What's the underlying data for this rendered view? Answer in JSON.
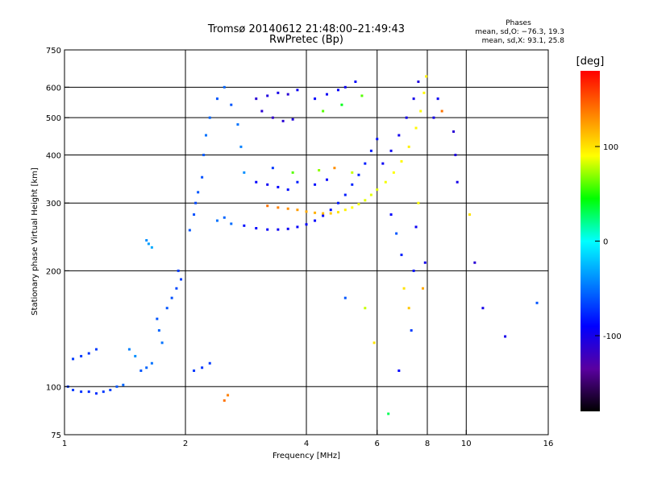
{
  "chart_data": {
    "type": "scatter",
    "title": "Tromsø 20140612 21:48:00–21:49:43",
    "subtitle": "RwPretec (Bp)",
    "xlabel": "Frequency [MHz]",
    "ylabel": "Stationary phase Virtual Height [km]",
    "x_scale": "log",
    "y_scale": "log",
    "xlim": [
      1,
      16
    ],
    "ylim": [
      75,
      750
    ],
    "x_ticks": [
      1,
      2,
      4,
      6,
      8,
      10,
      16
    ],
    "x_tick_labels": [
      "1",
      "2",
      "4",
      "6",
      "8",
      "10",
      "16"
    ],
    "y_ticks": [
      75,
      100,
      200,
      300,
      400,
      500,
      600,
      750
    ],
    "y_tick_labels": [
      "75",
      "100",
      "200",
      "300",
      "400",
      "500",
      "600",
      "750"
    ],
    "grid": true,
    "phase_box": {
      "title": "Phases",
      "line_o": "mean, sd,O: −76.3, 19.3",
      "line_x": "mean, sd,X:  93.1, 25.8"
    },
    "colorbar": {
      "label": "[deg]",
      "range": [
        -180,
        180
      ],
      "ticks": [
        100,
        0,
        -100
      ],
      "tick_labels": [
        "100",
        "0",
        "-100"
      ],
      "colors": [
        "#000000",
        "#5a00a0",
        "#0000ff",
        "#0080ff",
        "#00ffff",
        "#00ff00",
        "#ffff00",
        "#ff8000",
        "#ff0000"
      ]
    },
    "series": [
      {
        "values": [
          {
            "x": 1.02,
            "y": 100,
            "p": -70
          },
          {
            "x": 1.05,
            "y": 98,
            "p": -70
          },
          {
            "x": 1.1,
            "y": 97,
            "p": -72
          },
          {
            "x": 1.15,
            "y": 97,
            "p": -75
          },
          {
            "x": 1.2,
            "y": 96,
            "p": -75
          },
          {
            "x": 1.25,
            "y": 97,
            "p": -70
          },
          {
            "x": 1.3,
            "y": 98,
            "p": -68
          },
          {
            "x": 1.35,
            "y": 100,
            "p": -60
          },
          {
            "x": 1.4,
            "y": 101,
            "p": -55
          },
          {
            "x": 1.05,
            "y": 118,
            "p": -70
          },
          {
            "x": 1.1,
            "y": 120,
            "p": -70
          },
          {
            "x": 1.15,
            "y": 122,
            "p": -72
          },
          {
            "x": 1.2,
            "y": 125,
            "p": -70
          },
          {
            "x": 1.45,
            "y": 125,
            "p": -45
          },
          {
            "x": 1.5,
            "y": 120,
            "p": -40
          },
          {
            "x": 1.55,
            "y": 110,
            "p": -60
          },
          {
            "x": 1.6,
            "y": 112,
            "p": -55
          },
          {
            "x": 1.65,
            "y": 115,
            "p": -50
          },
          {
            "x": 1.6,
            "y": 240,
            "p": -40
          },
          {
            "x": 1.62,
            "y": 235,
            "p": -35
          },
          {
            "x": 1.65,
            "y": 230,
            "p": -30
          },
          {
            "x": 1.7,
            "y": 150,
            "p": -60
          },
          {
            "x": 1.72,
            "y": 140,
            "p": -55
          },
          {
            "x": 1.75,
            "y": 130,
            "p": -50
          },
          {
            "x": 1.8,
            "y": 160,
            "p": -60
          },
          {
            "x": 1.85,
            "y": 170,
            "p": -62
          },
          {
            "x": 1.9,
            "y": 180,
            "p": -65
          },
          {
            "x": 1.92,
            "y": 200,
            "p": -70
          },
          {
            "x": 1.95,
            "y": 190,
            "p": -68
          },
          {
            "x": 2.1,
            "y": 110,
            "p": -70
          },
          {
            "x": 2.2,
            "y": 112,
            "p": -72
          },
          {
            "x": 2.3,
            "y": 115,
            "p": -70
          },
          {
            "x": 2.05,
            "y": 255,
            "p": -60
          },
          {
            "x": 2.1,
            "y": 280,
            "p": -62
          },
          {
            "x": 2.12,
            "y": 300,
            "p": -65
          },
          {
            "x": 2.15,
            "y": 320,
            "p": -60
          },
          {
            "x": 2.2,
            "y": 350,
            "p": -62
          },
          {
            "x": 2.22,
            "y": 400,
            "p": -58
          },
          {
            "x": 2.25,
            "y": 450,
            "p": -50
          },
          {
            "x": 2.3,
            "y": 500,
            "p": -55
          },
          {
            "x": 2.4,
            "y": 560,
            "p": -60
          },
          {
            "x": 2.5,
            "y": 600,
            "p": -55
          },
          {
            "x": 2.6,
            "y": 540,
            "p": -60
          },
          {
            "x": 2.7,
            "y": 480,
            "p": -50
          },
          {
            "x": 2.75,
            "y": 420,
            "p": -45
          },
          {
            "x": 2.8,
            "y": 360,
            "p": -40
          },
          {
            "x": 2.4,
            "y": 270,
            "p": -50
          },
          {
            "x": 2.5,
            "y": 275,
            "p": -55
          },
          {
            "x": 2.6,
            "y": 265,
            "p": -52
          },
          {
            "x": 2.8,
            "y": 262,
            "p": -85
          },
          {
            "x": 3.0,
            "y": 258,
            "p": -90
          },
          {
            "x": 3.2,
            "y": 256,
            "p": -92
          },
          {
            "x": 3.4,
            "y": 256,
            "p": -95
          },
          {
            "x": 3.6,
            "y": 257,
            "p": -95
          },
          {
            "x": 3.8,
            "y": 260,
            "p": -92
          },
          {
            "x": 4.0,
            "y": 264,
            "p": -90
          },
          {
            "x": 4.2,
            "y": 270,
            "p": -90
          },
          {
            "x": 4.4,
            "y": 278,
            "p": -88
          },
          {
            "x": 4.6,
            "y": 288,
            "p": -85
          },
          {
            "x": 4.8,
            "y": 300,
            "p": -82
          },
          {
            "x": 5.0,
            "y": 315,
            "p": -80
          },
          {
            "x": 5.2,
            "y": 335,
            "p": -78
          },
          {
            "x": 5.4,
            "y": 355,
            "p": -78
          },
          {
            "x": 5.6,
            "y": 380,
            "p": -80
          },
          {
            "x": 5.8,
            "y": 410,
            "p": -82
          },
          {
            "x": 6.0,
            "y": 440,
            "p": -85
          },
          {
            "x": 3.2,
            "y": 295,
            "p": 140
          },
          {
            "x": 3.4,
            "y": 292,
            "p": 135
          },
          {
            "x": 3.6,
            "y": 290,
            "p": 130
          },
          {
            "x": 3.8,
            "y": 288,
            "p": 125
          },
          {
            "x": 4.0,
            "y": 285,
            "p": 120
          },
          {
            "x": 4.2,
            "y": 283,
            "p": 118
          },
          {
            "x": 4.4,
            "y": 282,
            "p": 115
          },
          {
            "x": 4.6,
            "y": 282,
            "p": 110
          },
          {
            "x": 4.8,
            "y": 284,
            "p": 100
          },
          {
            "x": 5.0,
            "y": 288,
            "p": 95
          },
          {
            "x": 5.2,
            "y": 292,
            "p": 90
          },
          {
            "x": 5.4,
            "y": 298,
            "p": 88
          },
          {
            "x": 5.6,
            "y": 305,
            "p": 85
          },
          {
            "x": 5.8,
            "y": 315,
            "p": 85
          },
          {
            "x": 6.0,
            "y": 325,
            "p": 85
          },
          {
            "x": 6.3,
            "y": 340,
            "p": 88
          },
          {
            "x": 6.6,
            "y": 360,
            "p": 90
          },
          {
            "x": 6.9,
            "y": 385,
            "p": 92
          },
          {
            "x": 7.2,
            "y": 420,
            "p": 95
          },
          {
            "x": 7.5,
            "y": 470,
            "p": 92
          },
          {
            "x": 7.7,
            "y": 520,
            "p": 90
          },
          {
            "x": 7.85,
            "y": 580,
            "p": 92
          },
          {
            "x": 7.95,
            "y": 640,
            "p": 95
          },
          {
            "x": 6.2,
            "y": 380,
            "p": -95
          },
          {
            "x": 6.5,
            "y": 410,
            "p": -95
          },
          {
            "x": 6.8,
            "y": 450,
            "p": -98
          },
          {
            "x": 7.1,
            "y": 500,
            "p": -100
          },
          {
            "x": 7.4,
            "y": 560,
            "p": -100
          },
          {
            "x": 7.6,
            "y": 620,
            "p": -105
          },
          {
            "x": 3.0,
            "y": 340,
            "p": -90
          },
          {
            "x": 3.2,
            "y": 335,
            "p": -95
          },
          {
            "x": 3.4,
            "y": 330,
            "p": -90
          },
          {
            "x": 3.6,
            "y": 325,
            "p": -85
          },
          {
            "x": 3.8,
            "y": 340,
            "p": -80
          },
          {
            "x": 4.2,
            "y": 335,
            "p": -85
          },
          {
            "x": 4.5,
            "y": 345,
            "p": -90
          },
          {
            "x": 3.3,
            "y": 370,
            "p": -70
          },
          {
            "x": 3.7,
            "y": 360,
            "p": 60
          },
          {
            "x": 4.3,
            "y": 365,
            "p": 70
          },
          {
            "x": 4.7,
            "y": 370,
            "p": 130
          },
          {
            "x": 5.2,
            "y": 360,
            "p": 80
          },
          {
            "x": 3.0,
            "y": 560,
            "p": -110
          },
          {
            "x": 3.2,
            "y": 570,
            "p": -105
          },
          {
            "x": 3.4,
            "y": 580,
            "p": -100
          },
          {
            "x": 3.6,
            "y": 575,
            "p": -110
          },
          {
            "x": 3.8,
            "y": 590,
            "p": -95
          },
          {
            "x": 3.1,
            "y": 520,
            "p": -110
          },
          {
            "x": 3.3,
            "y": 500,
            "p": -115
          },
          {
            "x": 3.5,
            "y": 490,
            "p": -110
          },
          {
            "x": 3.7,
            "y": 495,
            "p": -105
          },
          {
            "x": 4.2,
            "y": 560,
            "p": -90
          },
          {
            "x": 4.5,
            "y": 575,
            "p": -95
          },
          {
            "x": 4.8,
            "y": 590,
            "p": -92
          },
          {
            "x": 5.0,
            "y": 600,
            "p": -95
          },
          {
            "x": 5.3,
            "y": 620,
            "p": -90
          },
          {
            "x": 4.4,
            "y": 520,
            "p": 60
          },
          {
            "x": 4.9,
            "y": 540,
            "p": 40
          },
          {
            "x": 5.5,
            "y": 570,
            "p": 60
          },
          {
            "x": 6.5,
            "y": 280,
            "p": -90
          },
          {
            "x": 6.7,
            "y": 250,
            "p": -60
          },
          {
            "x": 6.9,
            "y": 220,
            "p": -80
          },
          {
            "x": 7.0,
            "y": 180,
            "p": 100
          },
          {
            "x": 7.2,
            "y": 160,
            "p": 110
          },
          {
            "x": 7.3,
            "y": 140,
            "p": -70
          },
          {
            "x": 7.4,
            "y": 200,
            "p": -85
          },
          {
            "x": 7.5,
            "y": 260,
            "p": -95
          },
          {
            "x": 7.6,
            "y": 300,
            "p": 90
          },
          {
            "x": 7.8,
            "y": 180,
            "p": 120
          },
          {
            "x": 7.9,
            "y": 210,
            "p": -100
          },
          {
            "x": 8.3,
            "y": 500,
            "p": -100
          },
          {
            "x": 8.5,
            "y": 560,
            "p": -95
          },
          {
            "x": 8.7,
            "y": 520,
            "p": 140
          },
          {
            "x": 9.3,
            "y": 460,
            "p": -110
          },
          {
            "x": 9.4,
            "y": 400,
            "p": -105
          },
          {
            "x": 9.5,
            "y": 340,
            "p": -100
          },
          {
            "x": 5.0,
            "y": 170,
            "p": -60
          },
          {
            "x": 5.6,
            "y": 160,
            "p": 80
          },
          {
            "x": 5.9,
            "y": 130,
            "p": 100
          },
          {
            "x": 6.4,
            "y": 85,
            "p": 30
          },
          {
            "x": 6.8,
            "y": 110,
            "p": -90
          },
          {
            "x": 10.5,
            "y": 210,
            "p": -110
          },
          {
            "x": 10.2,
            "y": 280,
            "p": 100
          },
          {
            "x": 11.0,
            "y": 160,
            "p": -100
          },
          {
            "x": 12.5,
            "y": 135,
            "p": -100
          },
          {
            "x": 15.0,
            "y": 165,
            "p": -60
          },
          {
            "x": 2.5,
            "y": 92,
            "p": 140
          },
          {
            "x": 2.55,
            "y": 95,
            "p": 135
          }
        ]
      }
    ]
  }
}
